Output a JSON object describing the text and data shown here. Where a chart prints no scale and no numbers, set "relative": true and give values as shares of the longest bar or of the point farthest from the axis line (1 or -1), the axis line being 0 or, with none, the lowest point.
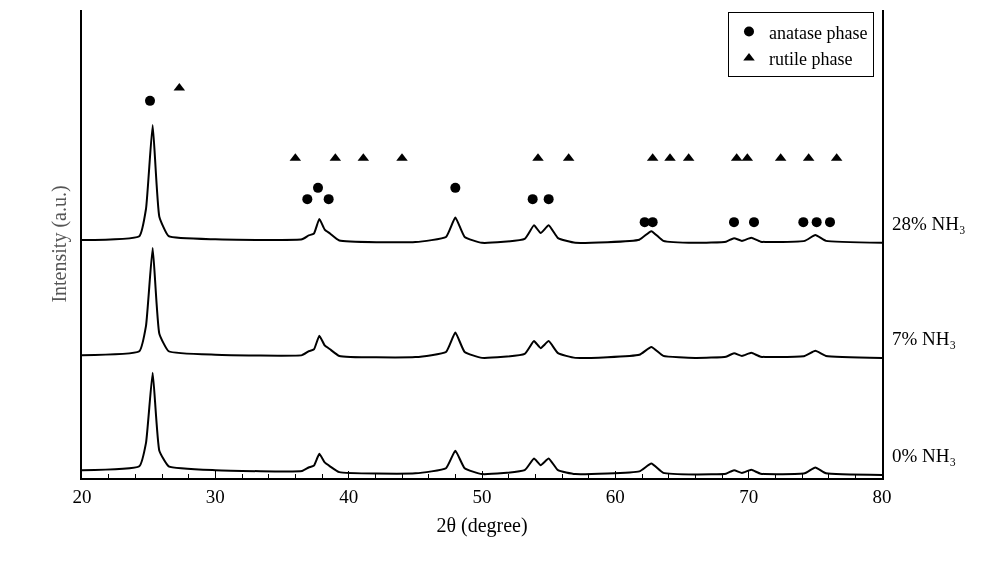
{
  "chart_data": {
    "type": "line",
    "relative": true,
    "xlabel": "2θ (degree)",
    "ylabel": "Intensity (a.u.)",
    "xlim": [
      20,
      80
    ],
    "xticks": [
      20,
      30,
      40,
      50,
      60,
      70,
      80
    ],
    "grid": false,
    "legend": "top right",
    "line_style": "solid",
    "x": [
      20,
      24.3,
      24.8,
      25.3,
      25.8,
      26.5,
      30,
      36.5,
      37.0,
      37.4,
      37.8,
      38.2,
      38.6,
      39.3,
      45,
      47.3,
      48.0,
      48.7,
      50,
      53.2,
      53.9,
      54.4,
      55.0,
      55.7,
      57,
      61.8,
      62.7,
      63.6,
      66,
      68.3,
      68.9,
      69.5,
      70.2,
      70.9,
      74.2,
      75.0,
      75.8,
      80
    ],
    "series": [
      {
        "name": "28% NH₃",
        "color": "#000000",
        "values": [
          0.61,
          0.62,
          0.69,
          0.905,
          0.67,
          0.62,
          0.612,
          0.612,
          0.622,
          0.627,
          0.664,
          0.637,
          0.627,
          0.609,
          0.605,
          0.618,
          0.668,
          0.618,
          0.603,
          0.613,
          0.648,
          0.628,
          0.648,
          0.615,
          0.603,
          0.611,
          0.633,
          0.608,
          0.603,
          0.606,
          0.615,
          0.608,
          0.616,
          0.606,
          0.608,
          0.623,
          0.608,
          0.603
        ]
      },
      {
        "name": "7% NH₃",
        "color": "#000000",
        "values": [
          0.315,
          0.325,
          0.39,
          0.59,
          0.37,
          0.325,
          0.316,
          0.315,
          0.325,
          0.33,
          0.365,
          0.34,
          0.33,
          0.313,
          0.31,
          0.323,
          0.373,
          0.323,
          0.308,
          0.318,
          0.351,
          0.333,
          0.351,
          0.32,
          0.308,
          0.316,
          0.336,
          0.313,
          0.308,
          0.311,
          0.32,
          0.313,
          0.321,
          0.311,
          0.313,
          0.326,
          0.313,
          0.308
        ]
      },
      {
        "name": "0% NH₃",
        "color": "#000000",
        "values": [
          0.02,
          0.03,
          0.09,
          0.27,
          0.07,
          0.03,
          0.02,
          0.018,
          0.027,
          0.032,
          0.062,
          0.04,
          0.03,
          0.015,
          0.012,
          0.025,
          0.07,
          0.025,
          0.01,
          0.02,
          0.05,
          0.033,
          0.05,
          0.02,
          0.01,
          0.017,
          0.037,
          0.013,
          0.009,
          0.011,
          0.02,
          0.013,
          0.021,
          0.011,
          0.012,
          0.027,
          0.012,
          0.008
        ]
      },
      {
        "name": "anatase phase",
        "type": "scatter",
        "marker": "circle",
        "color": "#000000",
        "x": [
          25.1,
          36.9,
          37.7,
          38.5,
          48.0,
          53.8,
          55.0,
          62.2,
          62.8,
          68.9,
          70.4,
          74.1,
          75.1,
          76.1
        ],
        "values": [
          0.967,
          0.715,
          0.744,
          0.715,
          0.744,
          0.715,
          0.715,
          0.656,
          0.656,
          0.656,
          0.656,
          0.656,
          0.656,
          0.656
        ]
      },
      {
        "name": "rutile phase",
        "type": "scatter",
        "marker": "triangle",
        "color": "#000000",
        "x": [
          27.3,
          36.0,
          39.0,
          41.1,
          44.0,
          54.2,
          56.5,
          62.8,
          64.1,
          65.5,
          69.1,
          69.9,
          72.4,
          74.5,
          76.6
        ],
        "values": [
          1.0,
          0.82,
          0.82,
          0.82,
          0.82,
          0.82,
          0.82,
          0.82,
          0.82,
          0.82,
          0.82,
          0.82,
          0.82,
          0.82,
          0.82
        ]
      }
    ]
  }
}
